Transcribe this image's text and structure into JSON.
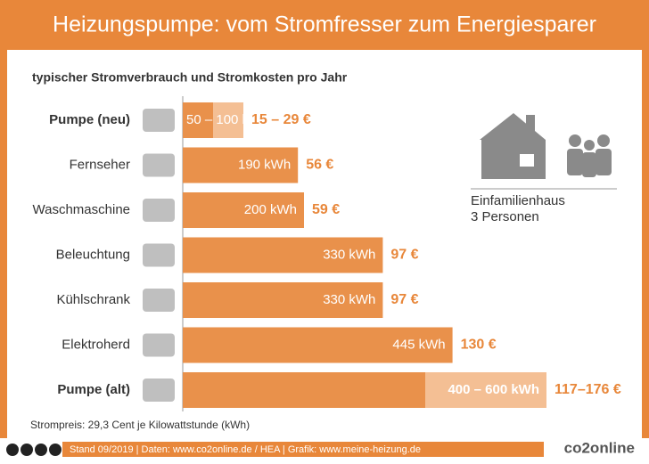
{
  "header": {
    "title": "Heizungspumpe: vom Stromfresser zum Energiesparer"
  },
  "chart_data": {
    "type": "bar",
    "orientation": "horizontal",
    "subtitle": "typischer Stromverbrauch und Stromkosten pro Jahr",
    "categories": [
      "Pumpe (neu)",
      "Fernseher",
      "Waschmaschine",
      "Beleuchtung",
      "Kühlschrank",
      "Elektroherd",
      "Pumpe (alt)"
    ],
    "values": [
      [
        50,
        100
      ],
      190,
      200,
      330,
      330,
      445,
      [
        400,
        600
      ]
    ],
    "value_labels": [
      "50 – 100 kWh",
      "190 kWh",
      "200 kWh",
      "330 kWh",
      "330 kWh",
      "445 kWh",
      "400 – 600 kWh"
    ],
    "cost_labels": [
      "15 – 29 €",
      "56 €",
      "59 €",
      "97 €",
      "97 €",
      "130 €",
      "117–176 €"
    ],
    "color": "#e9914b",
    "range_color": "#f4bf94",
    "legend": [
      "Einfamilienhaus",
      "3 Personen"
    ],
    "note": "Strompreis: 29,3 Cent je Kilowattstunde (kWh)"
  },
  "footer": {
    "licence": "cc by sa",
    "text": "Stand 09/2019   |   Daten: www.co2online.de / HEA   |   Grafik: www.meine-heizung.de",
    "logo": "co2online"
  }
}
